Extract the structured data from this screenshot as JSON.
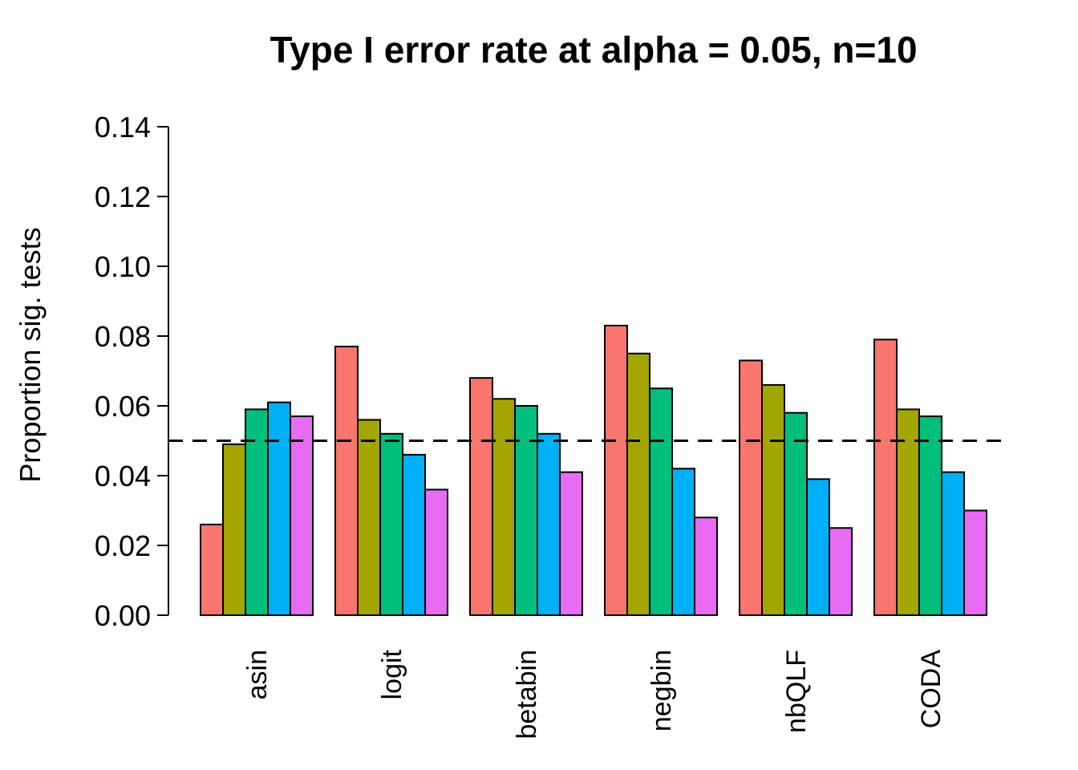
{
  "chart_data": {
    "type": "bar",
    "title": "Type I error rate at alpha = 0.05, n=10",
    "ylabel": "Proportion sig. tests",
    "xlabel": "",
    "ylim": [
      0,
      0.14
    ],
    "yticks": [
      "0.00",
      "0.02",
      "0.04",
      "0.06",
      "0.08",
      "0.10",
      "0.12",
      "0.14"
    ],
    "grid": false,
    "legend": "none",
    "reference_line": {
      "y": 0.05,
      "style": "dashed"
    },
    "categories": [
      "asin",
      "logit",
      "betabin",
      "negbin",
      "nbQLF",
      "CODA"
    ],
    "series": [
      {
        "color": "#F8766D",
        "values": [
          0.026,
          0.077,
          0.068,
          0.083,
          0.073,
          0.079
        ]
      },
      {
        "color": "#A3A500",
        "values": [
          0.049,
          0.056,
          0.062,
          0.075,
          0.066,
          0.059
        ]
      },
      {
        "color": "#00BF7D",
        "values": [
          0.059,
          0.052,
          0.06,
          0.065,
          0.058,
          0.057
        ]
      },
      {
        "color": "#00B0F6",
        "values": [
          0.061,
          0.046,
          0.052,
          0.042,
          0.039,
          0.041
        ]
      },
      {
        "color": "#E76BF3",
        "values": [
          0.057,
          0.036,
          0.041,
          0.028,
          0.025,
          0.03
        ]
      }
    ]
  }
}
